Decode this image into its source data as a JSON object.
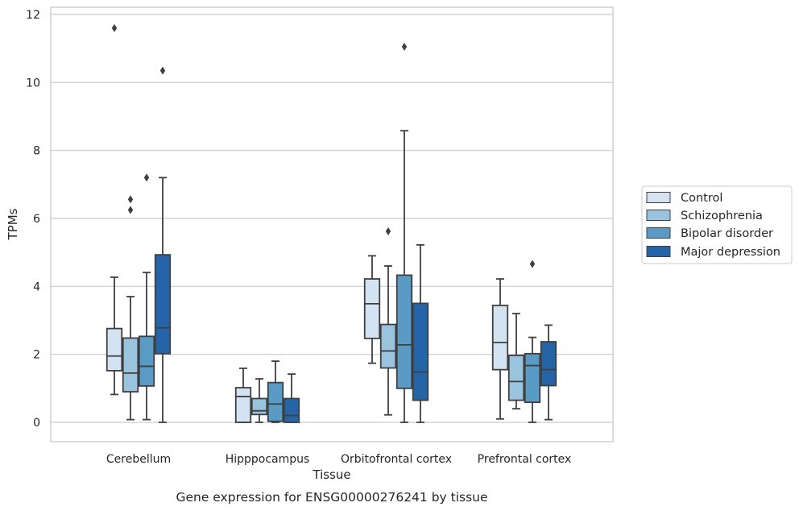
{
  "caption": "Gene expression for ENSG00000276241 by tissue",
  "chart_data": {
    "type": "box",
    "xlabel": "Tissue",
    "ylabel": "TPMs",
    "ylim": [
      -0.55,
      12.2
    ],
    "yticks": [
      0,
      2,
      4,
      6,
      8,
      10,
      12
    ],
    "grid": "horizontal",
    "legend_position": "right",
    "categories": [
      "Cerebellum",
      "Hipppocampus",
      "Orbitofrontal cortex",
      "Prefrontal cortex"
    ],
    "series": [
      {
        "name": "Control",
        "color": "#d4e3f1",
        "boxes": [
          {
            "whislo": 0.82,
            "q1": 1.52,
            "med": 1.95,
            "q3": 2.76,
            "whishi": 4.27,
            "fliers": [
              11.6
            ]
          },
          {
            "whislo": 0.0,
            "q1": 0.0,
            "med": 0.76,
            "q3": 1.02,
            "whishi": 1.59,
            "fliers": []
          },
          {
            "whislo": 1.74,
            "q1": 2.47,
            "med": 3.49,
            "q3": 4.22,
            "whishi": 4.9,
            "fliers": []
          },
          {
            "whislo": 0.1,
            "q1": 1.55,
            "med": 2.35,
            "q3": 3.44,
            "whishi": 4.22,
            "fliers": []
          }
        ]
      },
      {
        "name": "Schizophrenia",
        "color": "#9ac3de",
        "boxes": [
          {
            "whislo": 0.08,
            "q1": 0.9,
            "med": 1.45,
            "q3": 2.48,
            "whishi": 3.7,
            "fliers": [
              6.25,
              6.56
            ]
          },
          {
            "whislo": 0.0,
            "q1": 0.23,
            "med": 0.34,
            "q3": 0.7,
            "whishi": 1.28,
            "fliers": []
          },
          {
            "whislo": 0.22,
            "q1": 1.6,
            "med": 2.1,
            "q3": 2.88,
            "whishi": 4.6,
            "fliers": [
              5.62
            ]
          },
          {
            "whislo": 0.4,
            "q1": 0.65,
            "med": 1.2,
            "q3": 1.97,
            "whishi": 3.2,
            "fliers": []
          }
        ]
      },
      {
        "name": "Bipolar disorder",
        "color": "#5a9bc6",
        "boxes": [
          {
            "whislo": 0.08,
            "q1": 1.07,
            "med": 1.65,
            "q3": 2.53,
            "whishi": 4.41,
            "fliers": [
              7.2
            ]
          },
          {
            "whislo": 0.0,
            "q1": 0.03,
            "med": 0.54,
            "q3": 1.17,
            "whishi": 1.8,
            "fliers": []
          },
          {
            "whislo": 0.0,
            "q1": 1.0,
            "med": 2.28,
            "q3": 4.33,
            "whishi": 8.58,
            "fliers": [
              11.05
            ]
          },
          {
            "whislo": 0.0,
            "q1": 0.59,
            "med": 1.67,
            "q3": 2.02,
            "whishi": 2.5,
            "fliers": [
              4.66
            ]
          }
        ]
      },
      {
        "name": "Major depression",
        "color": "#2565a7",
        "boxes": [
          {
            "whislo": 0.0,
            "q1": 2.02,
            "med": 2.78,
            "q3": 4.93,
            "whishi": 7.2,
            "fliers": [
              10.35
            ]
          },
          {
            "whislo": 0.0,
            "q1": 0.0,
            "med": 0.2,
            "q3": 0.7,
            "whishi": 1.42,
            "fliers": []
          },
          {
            "whislo": 0.0,
            "q1": 0.65,
            "med": 1.48,
            "q3": 3.5,
            "whishi": 5.22,
            "fliers": []
          },
          {
            "whislo": 0.08,
            "q1": 1.08,
            "med": 1.55,
            "q3": 2.37,
            "whishi": 2.86,
            "fliers": []
          }
        ]
      }
    ]
  }
}
